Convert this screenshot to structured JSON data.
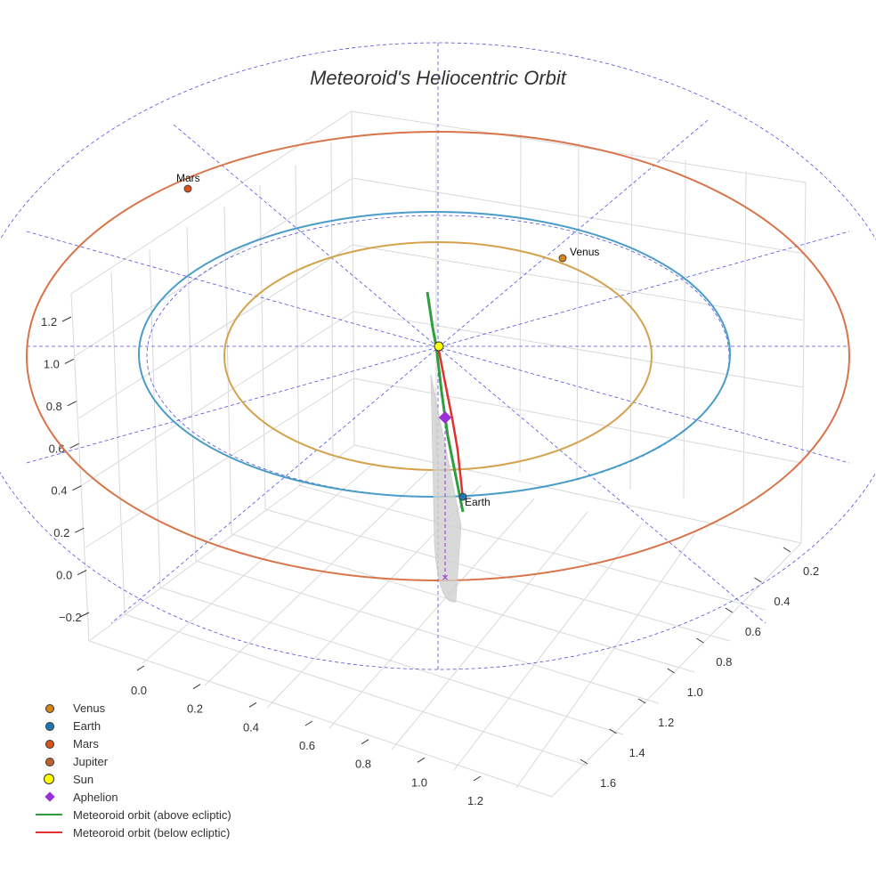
{
  "chart_data": {
    "type": "3d-orbit",
    "title": "Meteoroid's Heliocentric Orbit",
    "x_ticks": [
      "0.0",
      "0.2",
      "0.4",
      "0.6",
      "0.8",
      "1.0",
      "1.2"
    ],
    "y_ticks": [
      "0.2",
      "0.4",
      "0.6",
      "0.8",
      "1.0",
      "1.2",
      "1.4",
      "1.6"
    ],
    "z_ticks": [
      "−0.2",
      "0.0",
      "0.2",
      "0.4",
      "0.6",
      "0.8",
      "1.0",
      "1.2"
    ],
    "orbits": [
      {
        "name": "Venus orbit",
        "radius_au": 0.72,
        "color": "#d4a24c"
      },
      {
        "name": "Earth orbit",
        "radius_au": 1.0,
        "color": "#4a9dc9"
      },
      {
        "name": "Mars orbit",
        "radius_au": 1.52,
        "color": "#d9734a"
      }
    ],
    "planets": [
      {
        "name": "Venus",
        "label": "Venus",
        "color": "#d4851c"
      },
      {
        "name": "Earth",
        "label": "Earth",
        "color": "#1f77b4"
      },
      {
        "name": "Mars",
        "label": "Mars",
        "color": "#d9531e"
      }
    ],
    "meteoroid": {
      "above_ecliptic_color": "#2e9e3e",
      "below_ecliptic_color": "#e03030",
      "aphelion_color": "#9b30d9"
    },
    "legend": [
      {
        "label": "Venus",
        "kind": "dot",
        "color": "#d4851c"
      },
      {
        "label": "Earth",
        "kind": "dot",
        "color": "#1f77b4"
      },
      {
        "label": "Mars",
        "kind": "dot",
        "color": "#d9531e"
      },
      {
        "label": "Jupiter",
        "kind": "dot",
        "color": "#c0602a"
      },
      {
        "label": "Sun",
        "kind": "ring",
        "color": "#ffff00"
      },
      {
        "label": "Aphelion",
        "kind": "diamond",
        "color": "#9b30d9"
      },
      {
        "label": "Meteoroid orbit (above ecliptic)",
        "kind": "line",
        "color": "#2e9e3e"
      },
      {
        "label": "Meteoroid orbit (below ecliptic)",
        "kind": "line",
        "color": "#e03030"
      }
    ]
  }
}
